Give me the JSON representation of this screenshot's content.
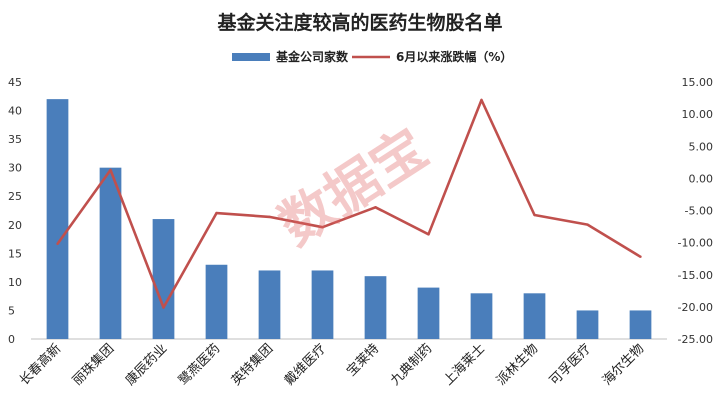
{
  "chart_data": {
    "type": "bar+line",
    "title": "基金关注度较高的医药生物股名单",
    "watermark": "数据宝",
    "categories": [
      "长春高新",
      "丽珠集团",
      "康辰药业",
      "鹭燕医药",
      "英特集团",
      "戴维医疗",
      "宝莱特",
      "九典制药",
      "上海莱士",
      "派林生物",
      "可孚医疗",
      "海尔生物"
    ],
    "series": [
      {
        "name": "基金公司家数",
        "type": "bar",
        "axis": "left",
        "color": "#4a7ebb",
        "values": [
          42,
          30,
          21,
          13,
          12,
          12,
          11,
          9,
          8,
          8,
          5,
          5
        ]
      },
      {
        "name": "6月以来涨跌幅（%）",
        "type": "line",
        "axis": "right",
        "color": "#c0504d",
        "values": [
          -10.2,
          1.3,
          -20.1,
          -5.4,
          -6.0,
          -7.6,
          -4.5,
          -8.7,
          12.2,
          -5.7,
          -7.2,
          -12.2
        ]
      }
    ],
    "left_axis": {
      "min": 0,
      "max": 45,
      "step": 5,
      "ticks": [
        "0",
        "5",
        "10",
        "15",
        "20",
        "25",
        "30",
        "35",
        "40",
        "45"
      ]
    },
    "right_axis": {
      "min": -25,
      "max": 15,
      "step": 5,
      "ticks": [
        "-25.00",
        "-20.00",
        "-15.00",
        "-10.00",
        "-5.00",
        "0.00",
        "5.00",
        "10.00",
        "15.00"
      ]
    },
    "legend_position": "top-center",
    "grid": false
  }
}
